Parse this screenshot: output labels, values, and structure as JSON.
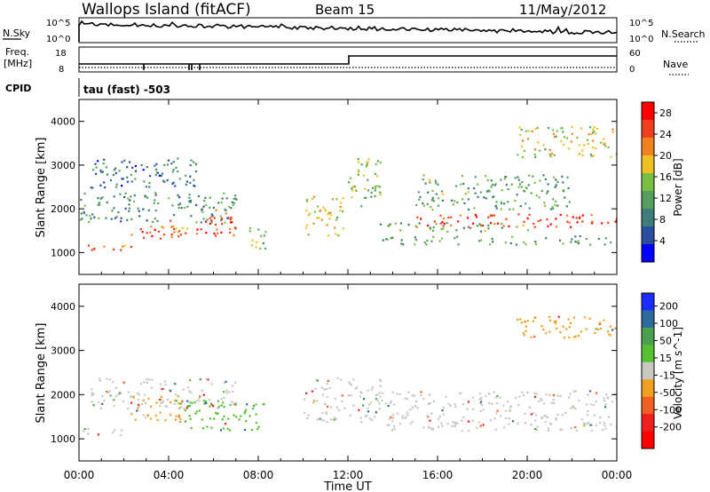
{
  "header": {
    "title": "Wallops Island (fitACF)",
    "beam": "Beam 15",
    "date": "11/May/2012"
  },
  "panels": {
    "nsky_label": "N.Sky",
    "nsearch_label": "N.Search",
    "freq_label_line1": "Freq.",
    "freq_label_line2": "[MHz]",
    "nave_label": "Nave",
    "cpid_label": "CPID",
    "cpid_text": "tau (fast) -503",
    "noise_ticks": {
      "top": "10^5",
      "bottom": "10^0"
    },
    "freq_ticks": {
      "top": "18",
      "bottom": "8"
    },
    "nave_ticks": {
      "top": "60",
      "bottom": "0"
    }
  },
  "colors": {
    "power_scale": [
      "#0000ff",
      "#2c4ea0",
      "#3e7e78",
      "#55a060",
      "#7ac040",
      "#f0c020",
      "#f08020",
      "#f04020",
      "#ff0000"
    ],
    "velocity_scale": [
      "#1a2cff",
      "#2c6aa0",
      "#4aa050",
      "#55c030",
      "#c8c8c0",
      "#f0a020",
      "#f06020",
      "#f02020",
      "#ff0000"
    ],
    "ground_scatter": "#c8c8c0"
  },
  "chart_data": [
    {
      "type": "heatmap",
      "name": "power",
      "xlabel": "Time UT",
      "ylabel": "Slant Range [km]",
      "x_ticks": [
        "00:00",
        "04:00",
        "08:00",
        "12:00",
        "16:00",
        "20:00",
        "00:00"
      ],
      "x_range_hours": [
        0,
        24
      ],
      "y_ticks": [
        1000,
        2000,
        3000,
        4000
      ],
      "ylim": [
        500,
        4500
      ],
      "colorbar_label": "Power [dB]",
      "colorbar_ticks": [
        4,
        8,
        12,
        16,
        20,
        24,
        28
      ],
      "colorbar_range": [
        0,
        30
      ],
      "features": [
        {
          "t": [
            0.0,
            2.3
          ],
          "range": [
            1050,
            1200
          ],
          "level": 23
        },
        {
          "t": [
            2.3,
            4.5
          ],
          "range": [
            1300,
            1750
          ],
          "level": 24
        },
        {
          "t": [
            4.5,
            5.4
          ],
          "range": [
            1350,
            1600
          ],
          "level": 22
        },
        {
          "t": [
            5.4,
            7.3
          ],
          "range": [
            1400,
            2000
          ],
          "level": 25
        },
        {
          "t": [
            7.3,
            8.3
          ],
          "range": [
            1100,
            1600
          ],
          "level": 14
        },
        {
          "t": [
            0.0,
            7.0
          ],
          "range": [
            1700,
            2400
          ],
          "level": 10
        },
        {
          "t": [
            0.5,
            5.5
          ],
          "range": [
            2500,
            3200
          ],
          "level": 8
        },
        {
          "t": [
            10.0,
            11.8
          ],
          "range": [
            1400,
            2300
          ],
          "level": 18
        },
        {
          "t": [
            12.0,
            13.5
          ],
          "range": [
            2000,
            3200
          ],
          "level": 15
        },
        {
          "t": [
            13.5,
            24.0
          ],
          "range": [
            1200,
            1400
          ],
          "level": 12
        },
        {
          "t": [
            13.0,
            20.0
          ],
          "range": [
            1500,
            1700
          ],
          "level": 12
        },
        {
          "t": [
            15.0,
            24.0
          ],
          "range": [
            1600,
            1900
          ],
          "level": 26
        },
        {
          "t": [
            15.0,
            22.0
          ],
          "range": [
            2000,
            2800
          ],
          "level": 12
        },
        {
          "t": [
            19.5,
            24.0
          ],
          "range": [
            3200,
            3900
          ],
          "level": 17
        }
      ]
    },
    {
      "type": "heatmap",
      "name": "velocity",
      "xlabel": "Time UT",
      "ylabel": "Slant Range [km]",
      "x_ticks": [
        "00:00",
        "04:00",
        "08:00",
        "12:00",
        "16:00",
        "20:00",
        "00:00"
      ],
      "x_range_hours": [
        0,
        24
      ],
      "y_ticks": [
        1000,
        2000,
        3000,
        4000
      ],
      "ylim": [
        500,
        4500
      ],
      "colorbar_label": "Velocity [m s^-1]",
      "colorbar_ticks": [
        200,
        100,
        50,
        15,
        -15,
        -50,
        -100,
        -200
      ],
      "features": [
        {
          "t": [
            0.0,
            2.3
          ],
          "range": [
            1100,
            1250
          ],
          "velocity": 0
        },
        {
          "t": [
            2.3,
            4.5
          ],
          "range": [
            1400,
            2000
          ],
          "velocity": -40
        },
        {
          "t": [
            4.5,
            8.3
          ],
          "range": [
            1200,
            1900
          ],
          "velocity": 35
        },
        {
          "t": [
            0.5,
            7.0
          ],
          "range": [
            1700,
            2400
          ],
          "velocity": 0
        },
        {
          "t": [
            10.0,
            13.5
          ],
          "range": [
            1400,
            2400
          ],
          "velocity": 0
        },
        {
          "t": [
            13.5,
            24.0
          ],
          "range": [
            1200,
            2100
          ],
          "velocity": 0
        },
        {
          "t": [
            19.5,
            24.0
          ],
          "range": [
            3300,
            3800
          ],
          "velocity": -30
        }
      ]
    }
  ]
}
